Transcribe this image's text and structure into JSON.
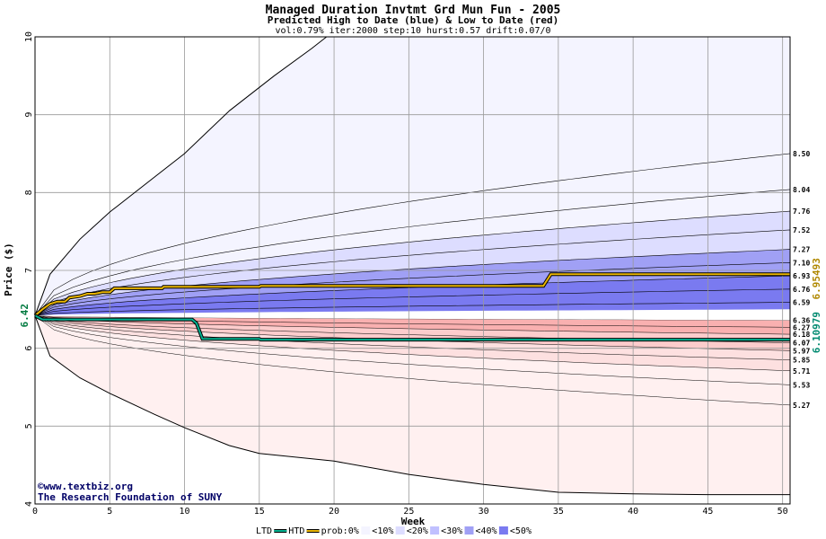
{
  "chart_data": {
    "type": "area",
    "title": "Managed Duration Invtmt Grd Mun Fun - 2005",
    "subtitle": "Predicted High to Date (blue) &  Low to Date (red)",
    "params": "vol:0.79% iter:2000 step:10 hurst:0.57 drift:0.07/0",
    "xlabel": "Week",
    "ylabel": "Price ($)",
    "xlim": [
      0,
      50.5
    ],
    "ylim": [
      4,
      10
    ],
    "x_ticks": [
      "0",
      "5",
      "10",
      "15",
      "20",
      "25",
      "30",
      "35",
      "40",
      "45",
      "50"
    ],
    "y_ticks": [
      "4",
      "5",
      "6",
      "7",
      "8",
      "9",
      "10"
    ],
    "start_price": 6.42,
    "start_price_label": "6.42",
    "htd_final_label": "6.95493",
    "ltd_final_label": "6.10979",
    "high_bands_final": [
      "8.50",
      "8.04",
      "7.76",
      "7.52",
      "7.27",
      "7.10",
      "6.93",
      "6.76",
      "6.59"
    ],
    "low_bands_final": [
      "6.36",
      "6.27",
      "6.18",
      "6.07",
      "5.97",
      "5.85",
      "5.71",
      "5.53",
      "5.27"
    ],
    "high_band_values": [
      8.5,
      8.04,
      7.76,
      7.52,
      7.27,
      7.1,
      6.93,
      6.76,
      6.59
    ],
    "low_band_values": [
      6.36,
      6.27,
      6.18,
      6.07,
      5.97,
      5.85,
      5.71,
      5.53,
      5.27
    ],
    "high_envelope": [
      [
        0,
        6.42
      ],
      [
        1,
        6.95
      ],
      [
        3,
        7.4
      ],
      [
        5,
        7.75
      ],
      [
        8,
        8.2
      ],
      [
        10,
        8.5
      ],
      [
        13,
        9.05
      ],
      [
        16,
        9.5
      ],
      [
        18.5,
        9.85
      ],
      [
        19.5,
        10.0
      ]
    ],
    "low_envelope": [
      [
        0,
        6.42
      ],
      [
        1,
        5.9
      ],
      [
        3,
        5.62
      ],
      [
        5,
        5.42
      ],
      [
        8,
        5.15
      ],
      [
        10,
        4.98
      ],
      [
        13,
        4.75
      ],
      [
        15,
        4.65
      ],
      [
        20,
        4.55
      ],
      [
        25,
        4.38
      ],
      [
        30,
        4.25
      ],
      [
        35,
        4.15
      ],
      [
        40,
        4.13
      ],
      [
        45,
        4.12
      ],
      [
        50.5,
        4.12
      ]
    ],
    "series": [
      {
        "name": "HTD",
        "color": "#e8b400",
        "values": [
          [
            0,
            6.42
          ],
          [
            0.5,
            6.5
          ],
          [
            1,
            6.57
          ],
          [
            1.5,
            6.6
          ],
          [
            2,
            6.6
          ],
          [
            2.3,
            6.65
          ],
          [
            3,
            6.67
          ],
          [
            3.5,
            6.7
          ],
          [
            4,
            6.7
          ],
          [
            4.5,
            6.72
          ],
          [
            5,
            6.72
          ],
          [
            5.3,
            6.77
          ],
          [
            8.5,
            6.77
          ],
          [
            8.6,
            6.79
          ],
          [
            15,
            6.79
          ],
          [
            15.1,
            6.8
          ],
          [
            27,
            6.8
          ],
          [
            27.1,
            6.8
          ],
          [
            34,
            6.8
          ],
          [
            34.5,
            6.95
          ],
          [
            50.5,
            6.95
          ]
        ]
      },
      {
        "name": "LTD",
        "color": "#00b090",
        "values": [
          [
            0,
            6.42
          ],
          [
            0.5,
            6.37
          ],
          [
            10.5,
            6.37
          ],
          [
            10.8,
            6.32
          ],
          [
            11.2,
            6.12
          ],
          [
            15,
            6.12
          ],
          [
            15.1,
            6.11
          ],
          [
            50.5,
            6.11
          ]
        ]
      }
    ],
    "legend": {
      "placement": "bottom",
      "items": [
        "LTD",
        "HTD",
        "prob:0%",
        "<10%",
        "<20%",
        "<30%",
        "<40%",
        "<50%"
      ],
      "colors": [
        "#ffffff",
        "#f4f4ff",
        "#ddddff",
        "#c8c8ff",
        "#a0a0f5",
        "#7a7af0"
      ],
      "red_colors": [
        "#fff0f0",
        "#fde0e0",
        "#fccccc",
        "#f9b0b0",
        "#f59a9a"
      ]
    },
    "credit_line1": "©www.textbiz.org",
    "credit_line2": "The Research Foundation of SUNY",
    "grid": true
  }
}
